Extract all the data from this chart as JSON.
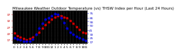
{
  "title": "Milwaukee Weather Outdoor Temperature (vs) THSW Index per Hour (Last 24 Hours)",
  "hours": [
    0,
    1,
    2,
    3,
    4,
    5,
    6,
    7,
    8,
    9,
    10,
    11,
    12,
    13,
    14,
    15,
    16,
    17,
    18,
    19,
    20,
    21,
    22,
    23
  ],
  "hour_labels": [
    "0",
    "1",
    "2",
    "3",
    "4",
    "5",
    "6",
    "7",
    "8",
    "9",
    "10",
    "11",
    "12",
    "1",
    "2",
    "3",
    "4",
    "5",
    "6",
    "7",
    "8",
    "9",
    "10",
    "11"
  ],
  "temp_outdoor": [
    22,
    20,
    19,
    18,
    17,
    18,
    19,
    21,
    23,
    26,
    29,
    31,
    33,
    35,
    36,
    36,
    35,
    34,
    32,
    30,
    27,
    25,
    23,
    22
  ],
  "thsw_index": [
    26,
    23,
    21,
    19,
    18,
    19,
    22,
    32,
    45,
    54,
    62,
    66,
    70,
    74,
    72,
    65,
    55,
    45,
    37,
    32,
    28,
    25,
    22,
    20
  ],
  "outdoor_color": "#cc0000",
  "thsw_color": "#0000cc",
  "bg_color": "#ffffff",
  "plot_bg": "#000000",
  "grid_color": "#888888",
  "ylim_left": [
    14,
    40
  ],
  "ylim_right": [
    14,
    80
  ],
  "yticks_right": [
    17,
    25,
    33,
    41,
    50,
    58,
    66,
    75
  ],
  "ytick_labels_right": [
    "17",
    "25",
    "33",
    "41",
    "50",
    "58",
    "66",
    "75"
  ],
  "yticks_left": [
    17,
    22,
    27,
    32,
    37
  ],
  "ytick_labels_left": [
    "17",
    "22",
    "27",
    "32",
    "37"
  ],
  "title_fontsize": 4.0,
  "tick_fontsize": 3.2,
  "marker_size": 1.8,
  "line_width": 0.5
}
